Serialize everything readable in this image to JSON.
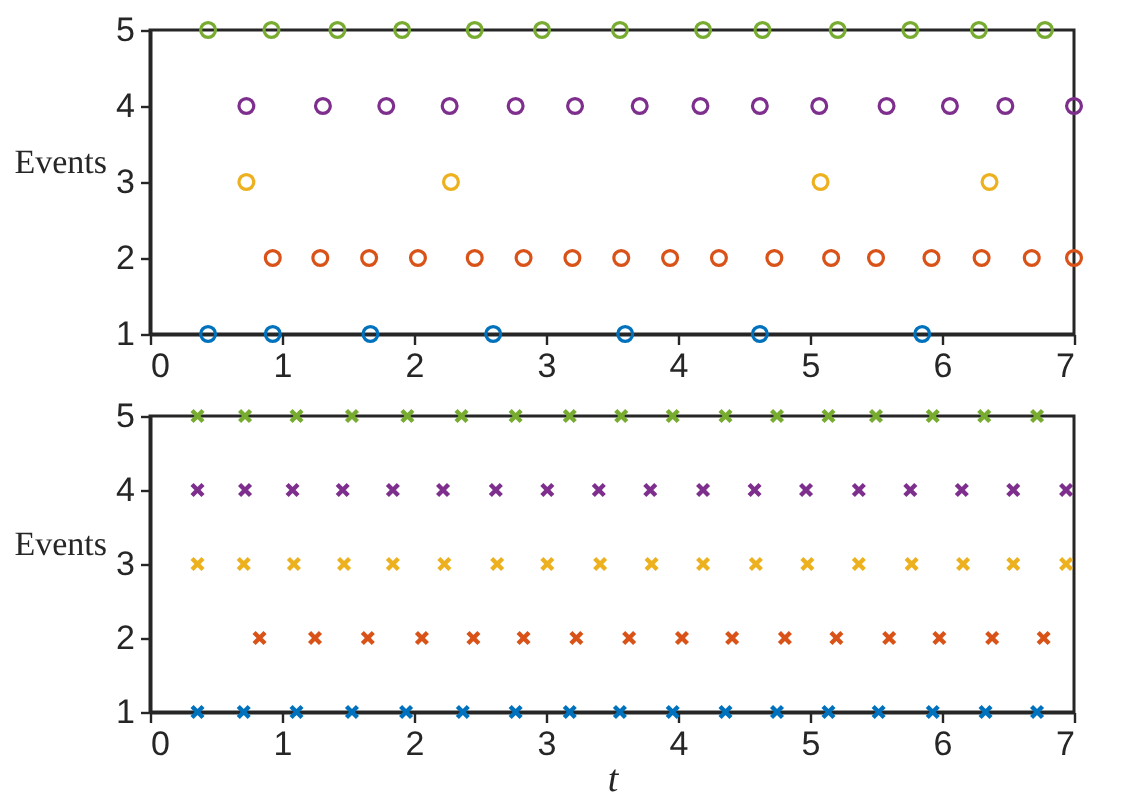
{
  "chart_data": [
    {
      "type": "scatter",
      "ylabel": "Events",
      "marker": "circle",
      "xlim": [
        0,
        7
      ],
      "ylim": [
        1,
        5
      ],
      "xticks": [
        0,
        1,
        2,
        3,
        4,
        5,
        6,
        7
      ],
      "yticks": [
        1,
        2,
        3,
        4,
        5
      ],
      "series": [
        {
          "color": "#0072bd",
          "x": [
            0.44,
            0.93,
            1.67,
            2.6,
            3.6,
            4.62,
            5.85
          ],
          "values": [
            1,
            1,
            1,
            1,
            1,
            1,
            1
          ]
        },
        {
          "color": "#d95319",
          "x": [
            0.93,
            1.29,
            1.66,
            2.03,
            2.46,
            2.83,
            3.2,
            3.57,
            3.94,
            4.31,
            4.73,
            5.16,
            5.5,
            5.92,
            6.3,
            6.68,
            7.0
          ],
          "values": [
            2,
            2,
            2,
            2,
            2,
            2,
            2,
            2,
            2,
            2,
            2,
            2,
            2,
            2,
            2,
            2,
            2
          ]
        },
        {
          "color": "#edb120",
          "x": [
            0.73,
            2.28,
            5.08,
            6.36
          ],
          "values": [
            3,
            3,
            3,
            3
          ]
        },
        {
          "color": "#7e2f8e",
          "x": [
            0.73,
            1.31,
            1.79,
            2.27,
            2.77,
            3.22,
            3.71,
            4.17,
            4.62,
            5.07,
            5.58,
            6.06,
            6.48,
            7.0
          ],
          "values": [
            4,
            4,
            4,
            4,
            4,
            4,
            4,
            4,
            4,
            4,
            4,
            4,
            4,
            4
          ]
        },
        {
          "color": "#77ac30",
          "x": [
            0.44,
            0.92,
            1.42,
            1.91,
            2.46,
            2.97,
            3.56,
            4.19,
            4.64,
            5.21,
            5.76,
            6.28,
            6.78
          ],
          "values": [
            5,
            5,
            5,
            5,
            5,
            5,
            5,
            5,
            5,
            5,
            5,
            5,
            5
          ]
        }
      ]
    },
    {
      "type": "scatter",
      "xlabel": "t",
      "ylabel": "Events",
      "marker": "cross",
      "xlim": [
        0,
        7
      ],
      "ylim": [
        1,
        5
      ],
      "xticks": [
        0,
        1,
        2,
        3,
        4,
        5,
        6,
        7
      ],
      "yticks": [
        1,
        2,
        3,
        4,
        5
      ],
      "series": [
        {
          "color": "#0072bd",
          "x": [
            0.36,
            0.71,
            1.11,
            1.53,
            1.94,
            2.37,
            2.77,
            3.18,
            3.56,
            3.96,
            4.36,
            4.75,
            5.14,
            5.52,
            5.93,
            6.33,
            6.72
          ],
          "values": [
            1,
            1,
            1,
            1,
            1,
            1,
            1,
            1,
            1,
            1,
            1,
            1,
            1,
            1,
            1,
            1,
            1
          ]
        },
        {
          "color": "#d95319",
          "x": [
            0.83,
            1.25,
            1.65,
            2.06,
            2.45,
            2.83,
            3.23,
            3.63,
            4.03,
            4.41,
            4.81,
            5.2,
            5.6,
            5.98,
            6.38,
            6.77
          ],
          "values": [
            2,
            2,
            2,
            2,
            2,
            2,
            2,
            2,
            2,
            2,
            2,
            2,
            2,
            2,
            2,
            2
          ]
        },
        {
          "color": "#edb120",
          "x": [
            0.36,
            0.71,
            1.09,
            1.47,
            1.84,
            2.23,
            2.63,
            3.01,
            3.41,
            3.8,
            4.19,
            4.59,
            4.98,
            5.37,
            5.77,
            6.16,
            6.54,
            6.94
          ],
          "values": [
            3,
            3,
            3,
            3,
            3,
            3,
            3,
            3,
            3,
            3,
            3,
            3,
            3,
            3,
            3,
            3,
            3,
            3
          ]
        },
        {
          "color": "#7e2f8e",
          "x": [
            0.36,
            0.72,
            1.08,
            1.46,
            1.84,
            2.22,
            2.62,
            3.01,
            3.4,
            3.79,
            4.19,
            4.58,
            4.97,
            5.37,
            5.76,
            6.15,
            6.54,
            6.94
          ],
          "values": [
            4,
            4,
            4,
            4,
            4,
            4,
            4,
            4,
            4,
            4,
            4,
            4,
            4,
            4,
            4,
            4,
            4,
            4
          ]
        },
        {
          "color": "#77ac30",
          "x": [
            0.36,
            0.72,
            1.11,
            1.53,
            1.95,
            2.36,
            2.77,
            3.18,
            3.57,
            3.96,
            4.36,
            4.75,
            5.14,
            5.5,
            5.93,
            6.32,
            6.72
          ],
          "values": [
            5,
            5,
            5,
            5,
            5,
            5,
            5,
            5,
            5,
            5,
            5,
            5,
            5,
            5,
            5,
            5,
            5
          ]
        }
      ]
    }
  ]
}
